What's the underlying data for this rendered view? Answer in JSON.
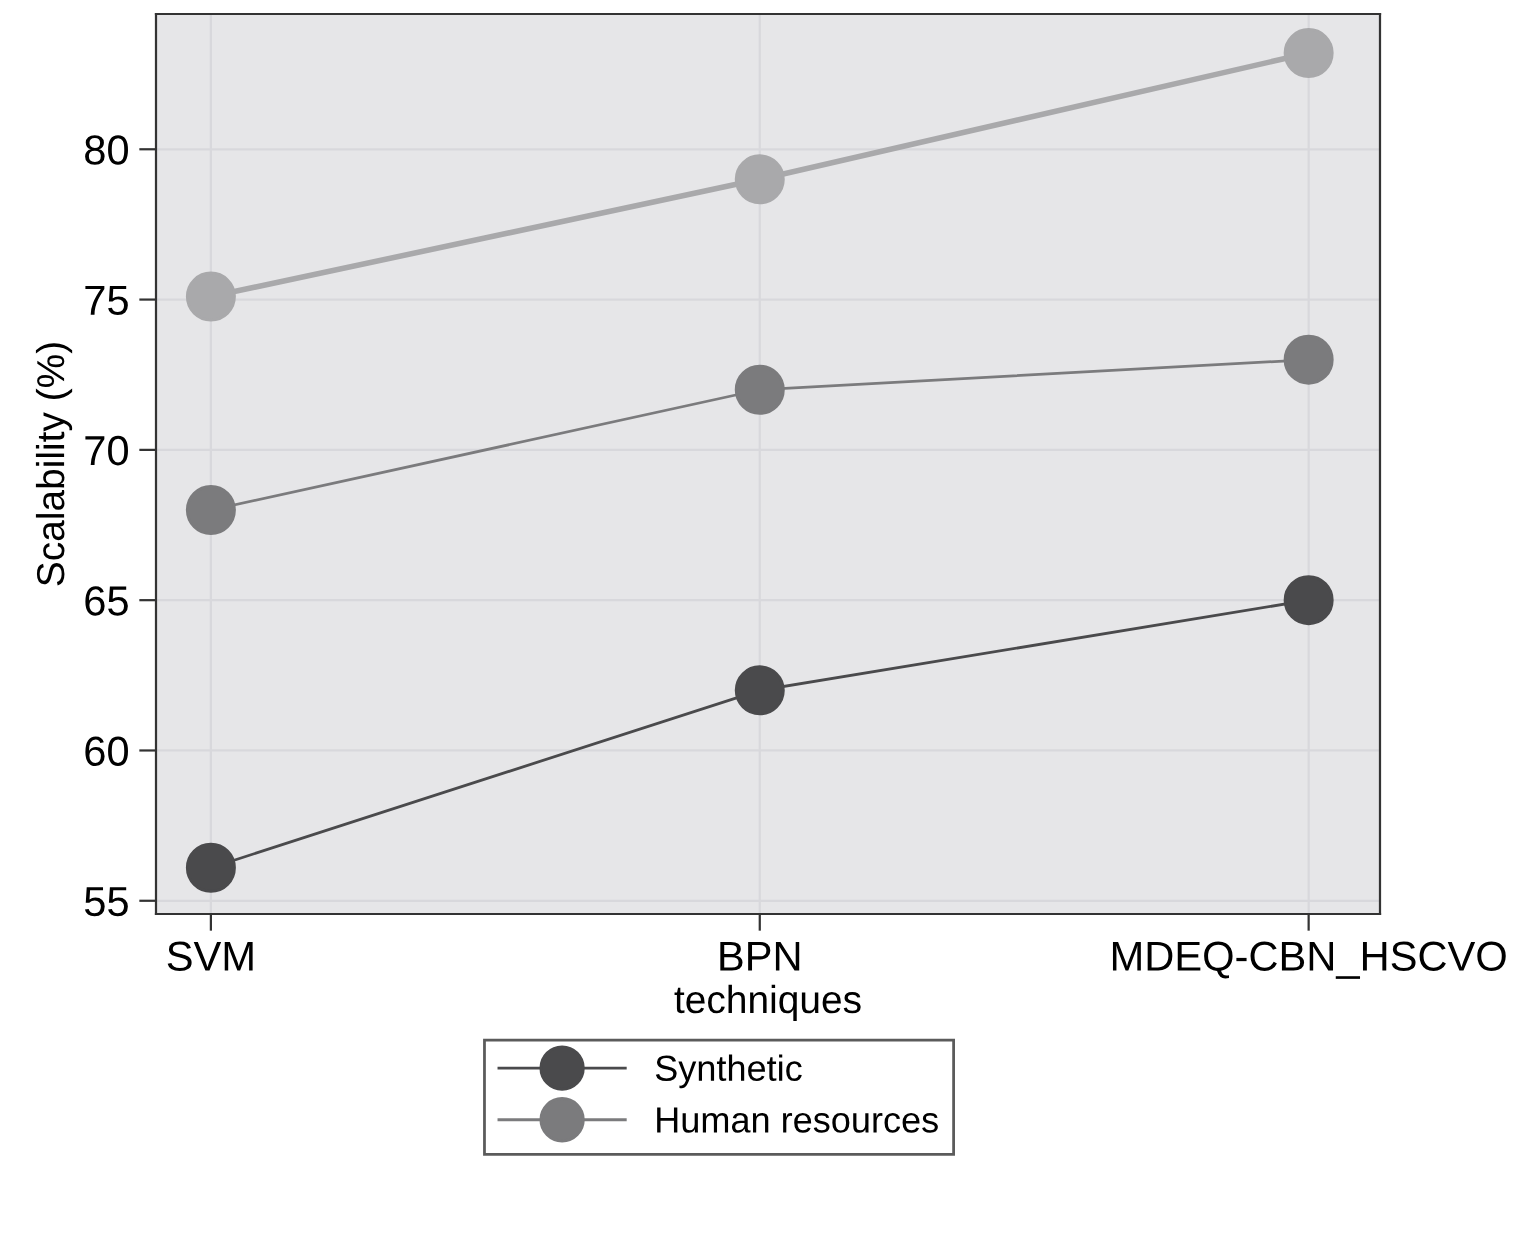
{
  "chart_data": {
    "type": "line",
    "xlabel": "techniques",
    "ylabel": "Scalability (%)",
    "categories": [
      "SVM",
      "BPN",
      "MDEQ-CBN_HSCVO"
    ],
    "series": [
      {
        "name": "Synthetic",
        "color": "#4a4a4c",
        "values": [
          56.1,
          62.0,
          65.0
        ]
      },
      {
        "name": "Human resources",
        "color": "#7b7b7d",
        "values": [
          68.0,
          72.0,
          73.0
        ]
      },
      {
        "color": "#a9a9ab",
        "values": [
          75.1,
          79.0,
          83.2
        ]
      }
    ],
    "ylim": [
      54.56,
      84.5
    ],
    "yticks": [
      55,
      60,
      65,
      70,
      75,
      80
    ],
    "grid": true,
    "legend": "bottom",
    "marker": "circle",
    "line_style": "solid"
  }
}
